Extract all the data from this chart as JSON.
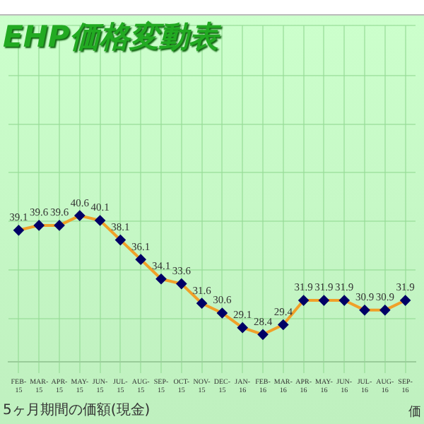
{
  "chart_data": {
    "type": "line",
    "title": "EHP価格変動表",
    "categories": [
      "FEB-15",
      "MAR-15",
      "APR-15",
      "MAY-15",
      "JUN-15",
      "JUL-15",
      "AUG-15",
      "SEP-15",
      "OCT-15",
      "NOV-15",
      "DEC-15",
      "JAN-16",
      "FEB-16",
      "MAR-16",
      "APR-16",
      "MAY-16",
      "JUN-16",
      "JUL-16",
      "AUG-16",
      "SEP-16"
    ],
    "series": [
      {
        "color": "#f0a028",
        "values": [
          39.1,
          39.6,
          39.6,
          40.6,
          40.1,
          38.1,
          36.1,
          34.1,
          33.6,
          31.6,
          30.6,
          29.1,
          28.4,
          29.4,
          31.9,
          31.9,
          31.9,
          30.9,
          30.9,
          31.9
        ]
      }
    ],
    "data_labels": true,
    "marker": "diamond",
    "grid": true,
    "legend": false,
    "tick_labels": "x",
    "annotations": [
      "5ヶ月期間の価額(現金)",
      "価"
    ]
  }
}
